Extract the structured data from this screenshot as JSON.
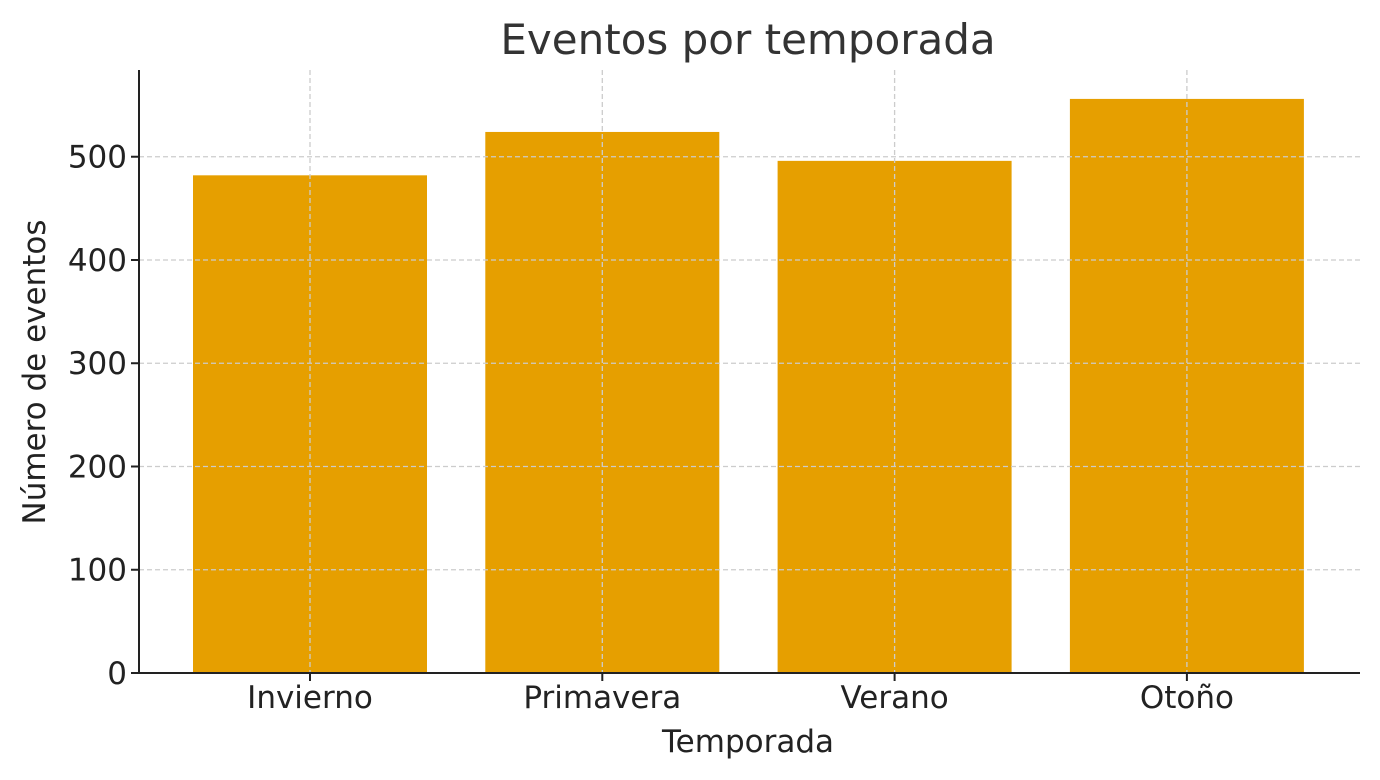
{
  "chart_data": {
    "type": "bar",
    "title": "Eventos por temporada",
    "xlabel": "Temporada",
    "ylabel": "Número de eventos",
    "categories": [
      "Invierno",
      "Primavera",
      "Verano",
      "Otoño"
    ],
    "values": [
      482,
      524,
      496,
      556
    ],
    "ylim": [
      0,
      584
    ],
    "yticks": [
      0,
      100,
      200,
      300,
      400,
      500
    ],
    "grid": true,
    "bar_color": "#E69F00"
  }
}
